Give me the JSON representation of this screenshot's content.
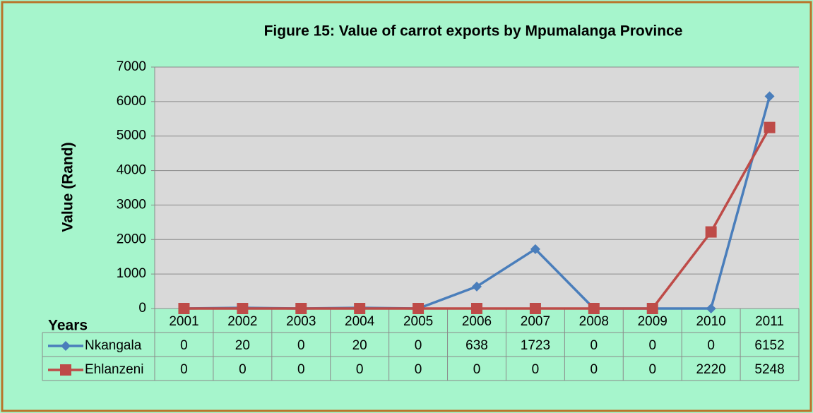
{
  "chart_data": {
    "type": "line",
    "title": "Figure 15: Value of carrot exports by Mpumalanga Province",
    "ylabel": "Value (Rand)",
    "xlabel": "Years",
    "categories": [
      "2001",
      "2002",
      "2003",
      "2004",
      "2005",
      "2006",
      "2007",
      "2008",
      "2009",
      "2010",
      "2011"
    ],
    "series": [
      {
        "name": "Nkangala",
        "color": "#4a7ebb",
        "marker": "diamond",
        "values": [
          0,
          20,
          0,
          20,
          0,
          638,
          1723,
          0,
          0,
          0,
          6152
        ]
      },
      {
        "name": "Ehlanzeni",
        "color": "#be4b48",
        "marker": "square",
        "values": [
          0,
          0,
          0,
          0,
          0,
          0,
          0,
          0,
          0,
          2220,
          5248
        ]
      }
    ],
    "ylim": [
      0,
      7000
    ],
    "yticks": [
      0,
      1000,
      2000,
      3000,
      4000,
      5000,
      6000,
      7000
    ],
    "grid": true,
    "data_table": true
  }
}
